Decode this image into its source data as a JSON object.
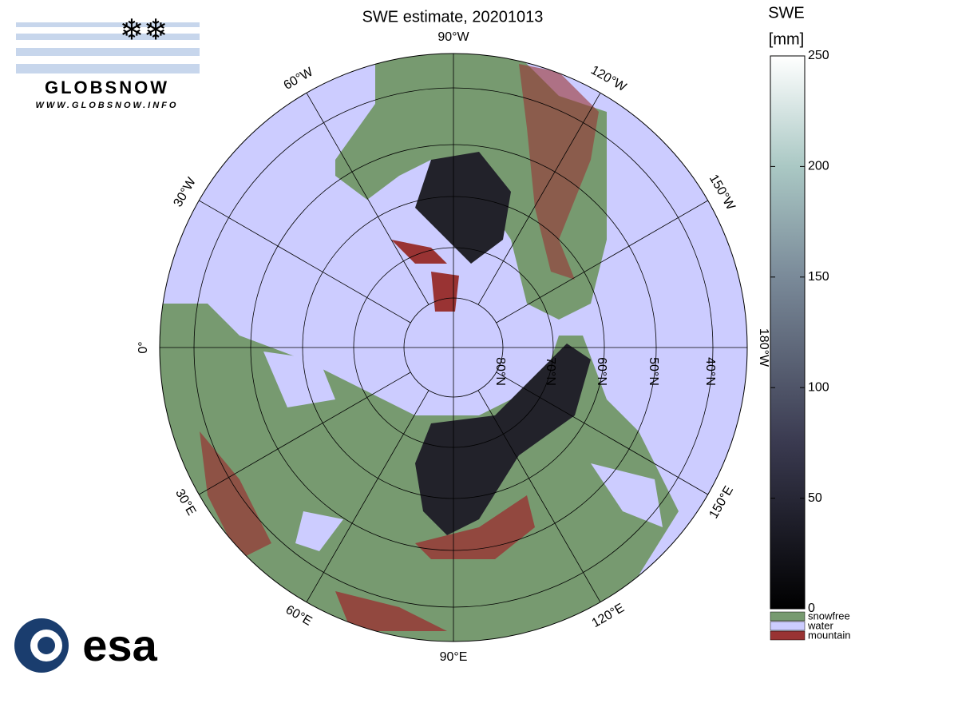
{
  "title": "SWE estimate, 20201013",
  "meridian_labels": [
    "0°",
    "30°E",
    "60°E",
    "90°E",
    "120°E",
    "150°E",
    "180°W",
    "150°W",
    "120°W",
    "90°W",
    "60°W",
    "30°W"
  ],
  "parallel_labels": [
    "80°N",
    "70°N",
    "60°N",
    "50°N",
    "40°N"
  ],
  "colorbar": {
    "title": [
      "SWE",
      "[mm]"
    ],
    "lim": [
      0,
      250
    ],
    "ticks": [
      0,
      50,
      100,
      150,
      200,
      250
    ]
  },
  "legend": [
    {
      "name": "snowfree",
      "color": "#779a70"
    },
    {
      "name": "water",
      "color": "#ccccff"
    },
    {
      "name": "mountain",
      "color": "#993333"
    }
  ],
  "logos": {
    "globsnow": "GLOBSNOW",
    "globsnow_url": "WWW.GLOBSNOW.INFO",
    "esa": "esa"
  }
}
